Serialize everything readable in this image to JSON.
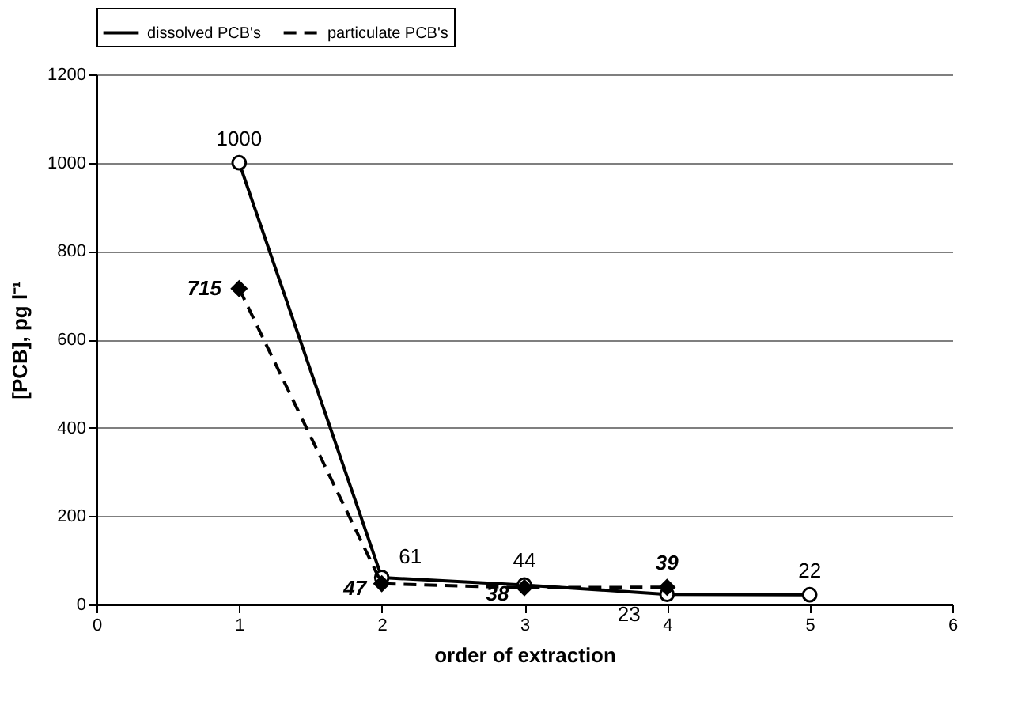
{
  "chart_data": {
    "type": "line",
    "xlabel": "order of extraction",
    "ylabel": "[PCB], pg l⁻¹",
    "series": [
      {
        "name": "dissolved PCB's",
        "color": "#000000",
        "marker": "circle",
        "line_style": "solid",
        "x": [
          1,
          2,
          3,
          4,
          5
        ],
        "values": [
          1000,
          61,
          44,
          23,
          22
        ]
      },
      {
        "name": "particulate PCB's",
        "color": "#000000",
        "marker": "diamond",
        "line_style": "dashed",
        "x": [
          1,
          2,
          3,
          4
        ],
        "values": [
          715,
          47,
          38,
          39
        ]
      }
    ],
    "xlim": [
      0,
      6
    ],
    "xticks": [
      0,
      1,
      2,
      3,
      4,
      5,
      6
    ],
    "ylim": [
      0,
      1200
    ],
    "yticks": [
      0,
      200,
      400,
      600,
      800,
      1000,
      1200
    ],
    "grid": "y",
    "legend": "top",
    "data_labels": true
  }
}
